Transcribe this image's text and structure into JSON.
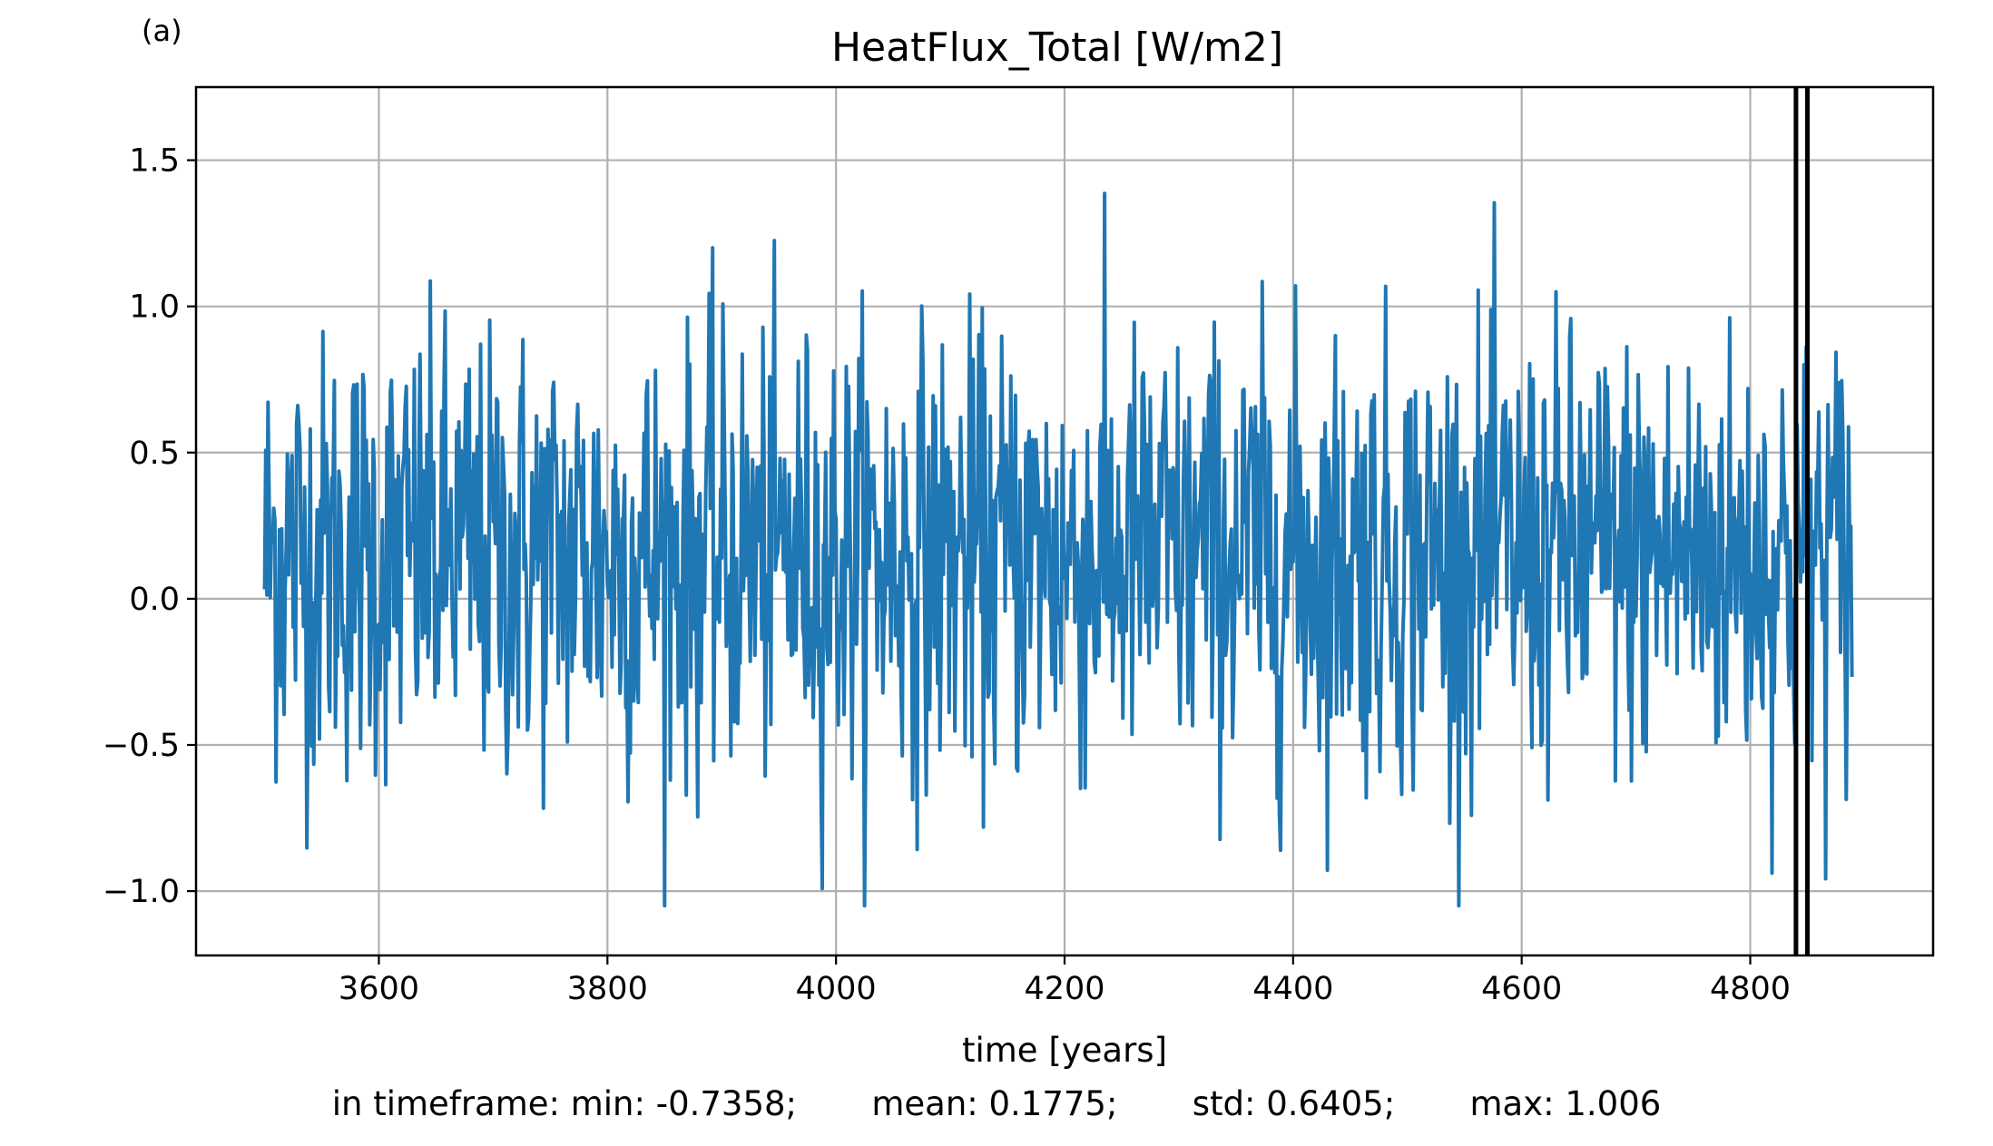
{
  "panel_label": "(a)",
  "chart_data": {
    "type": "line",
    "title": "HeatFlux_Total [W/m2]",
    "xlabel": "time [years]",
    "ylabel": "",
    "xlim": [
      3440,
      4960
    ],
    "ylim": [
      -1.22,
      1.75
    ],
    "x_ticks": [
      3600,
      3800,
      4000,
      4200,
      4400,
      4600,
      4800
    ],
    "x_tick_labels": [
      "3600",
      "3800",
      "4000",
      "4200",
      "4400",
      "4600",
      "4800"
    ],
    "y_ticks": [
      -1.0,
      -0.5,
      0.0,
      0.5,
      1.0,
      1.5
    ],
    "y_tick_labels": [
      "−1.0",
      "−0.5",
      "0.0",
      "0.5",
      "1.0",
      "1.5"
    ],
    "grid": true,
    "series": [
      {
        "color": "#1f77b4",
        "x_start": 3500,
        "x_step": 1,
        "count": 1390,
        "note_values": "annual time series, values approximated from picture",
        "values": []
      }
    ],
    "vertical_lines": [
      {
        "x": 4840,
        "color": "#000000"
      },
      {
        "x": 4850,
        "color": "#000000"
      }
    ]
  },
  "stats": {
    "text": "in timeframe: min: -0.7358;       mean: 0.1775;       std: 0.6405;       max: 1.006"
  }
}
